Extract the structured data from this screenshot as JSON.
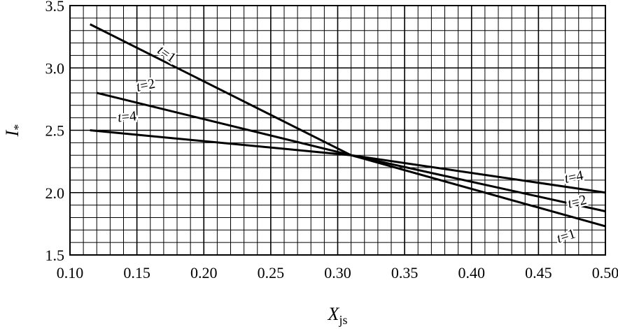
{
  "chart_data": {
    "type": "line",
    "title": "",
    "xlabel": "X",
    "xlabel_subscript": "js",
    "ylabel": "I",
    "ylabel_subscript": "*",
    "xlim": [
      0.1,
      0.5
    ],
    "ylim": [
      1.5,
      3.5
    ],
    "xticks": [
      "0.10",
      "0.15",
      "0.20",
      "0.25",
      "0.30",
      "0.35",
      "0.40",
      "0.45",
      "0.50"
    ],
    "yticks": [
      "1.5",
      "2.0",
      "2.5",
      "3.0",
      "3.5"
    ],
    "grid": true,
    "grid_minor_x_step": 0.01,
    "grid_minor_y_step": 0.1,
    "series": [
      {
        "name": "t=1",
        "x": [
          0.115,
          0.31,
          0.5
        ],
        "y": [
          3.35,
          2.3,
          1.73
        ],
        "label_left": "t=1",
        "label_right": "t=1"
      },
      {
        "name": "t=2",
        "x": [
          0.12,
          0.31,
          0.5
        ],
        "y": [
          2.8,
          2.3,
          1.85
        ],
        "label_left": "t=2",
        "label_right": "t=2"
      },
      {
        "name": "t=4",
        "x": [
          0.115,
          0.31,
          0.5
        ],
        "y": [
          2.5,
          2.3,
          2.0
        ],
        "label_left": "t=4",
        "label_right": "t=4"
      }
    ],
    "line_color": "#000000",
    "grid_color": "#000000"
  }
}
